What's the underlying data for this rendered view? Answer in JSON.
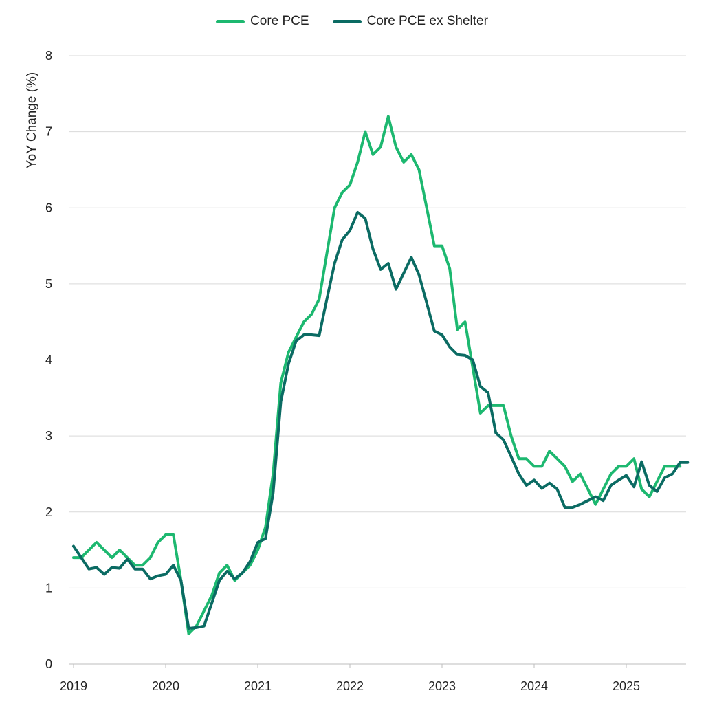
{
  "chart_data": {
    "type": "line",
    "title": "",
    "xlabel": "",
    "ylabel": "YoY Change (%)",
    "ylim": [
      0,
      8
    ],
    "yticks": [
      "0",
      "1",
      "2",
      "3",
      "4",
      "5",
      "6",
      "7",
      "8"
    ],
    "xlim": [
      2019,
      2025.667
    ],
    "xticks": [
      "2019",
      "2020",
      "2021",
      "2022",
      "2023",
      "2024",
      "2025"
    ],
    "grid": "horizontal",
    "legend_position": "top-center",
    "x_unit": "monthly, starting Jan 2019",
    "series": [
      {
        "name": "Core PCE",
        "color": "#1db870",
        "values": [
          1.4,
          1.4,
          1.5,
          1.6,
          1.5,
          1.4,
          1.5,
          1.4,
          1.3,
          1.3,
          1.4,
          1.6,
          1.7,
          1.7,
          1.1,
          0.4,
          0.5,
          0.7,
          0.9,
          1.2,
          1.3,
          1.1,
          1.2,
          1.3,
          1.5,
          1.8,
          2.5,
          3.7,
          4.1,
          4.3,
          4.5,
          4.6,
          4.8,
          5.4,
          6.0,
          6.2,
          6.3,
          6.6,
          7.0,
          6.7,
          6.8,
          7.2,
          6.8,
          6.6,
          6.7,
          6.5,
          6.0,
          5.5,
          5.5,
          5.2,
          4.4,
          4.5,
          3.9,
          3.3,
          3.4,
          3.4,
          3.4,
          3.0,
          2.7,
          2.7,
          2.6,
          2.6,
          2.8,
          2.7,
          2.6,
          2.4,
          2.5,
          2.3,
          2.1,
          2.3,
          2.5,
          2.6,
          2.6,
          2.7,
          2.3,
          2.2,
          2.4,
          2.6,
          2.6,
          2.6
        ]
      },
      {
        "name": "Core PCE ex Shelter",
        "color": "#0b6b63",
        "values": [
          1.55,
          1.4,
          1.25,
          1.27,
          1.18,
          1.27,
          1.26,
          1.38,
          1.25,
          1.25,
          1.12,
          1.16,
          1.18,
          1.3,
          1.1,
          0.47,
          0.48,
          0.5,
          0.8,
          1.1,
          1.22,
          1.12,
          1.2,
          1.35,
          1.6,
          1.65,
          2.25,
          3.45,
          3.95,
          4.25,
          4.33,
          4.33,
          4.32,
          4.8,
          5.27,
          5.58,
          5.7,
          5.94,
          5.86,
          5.46,
          5.19,
          5.27,
          4.93,
          5.14,
          5.35,
          5.12,
          4.75,
          4.38,
          4.33,
          4.17,
          4.07,
          4.06,
          4.0,
          3.65,
          3.57,
          3.04,
          2.95,
          2.73,
          2.5,
          2.35,
          2.42,
          2.31,
          2.38,
          2.3,
          2.06,
          2.06,
          2.1,
          2.15,
          2.2,
          2.15,
          2.35,
          2.42,
          2.48,
          2.33,
          2.66,
          2.35,
          2.27,
          2.45,
          2.5,
          2.65,
          2.65
        ]
      }
    ]
  }
}
